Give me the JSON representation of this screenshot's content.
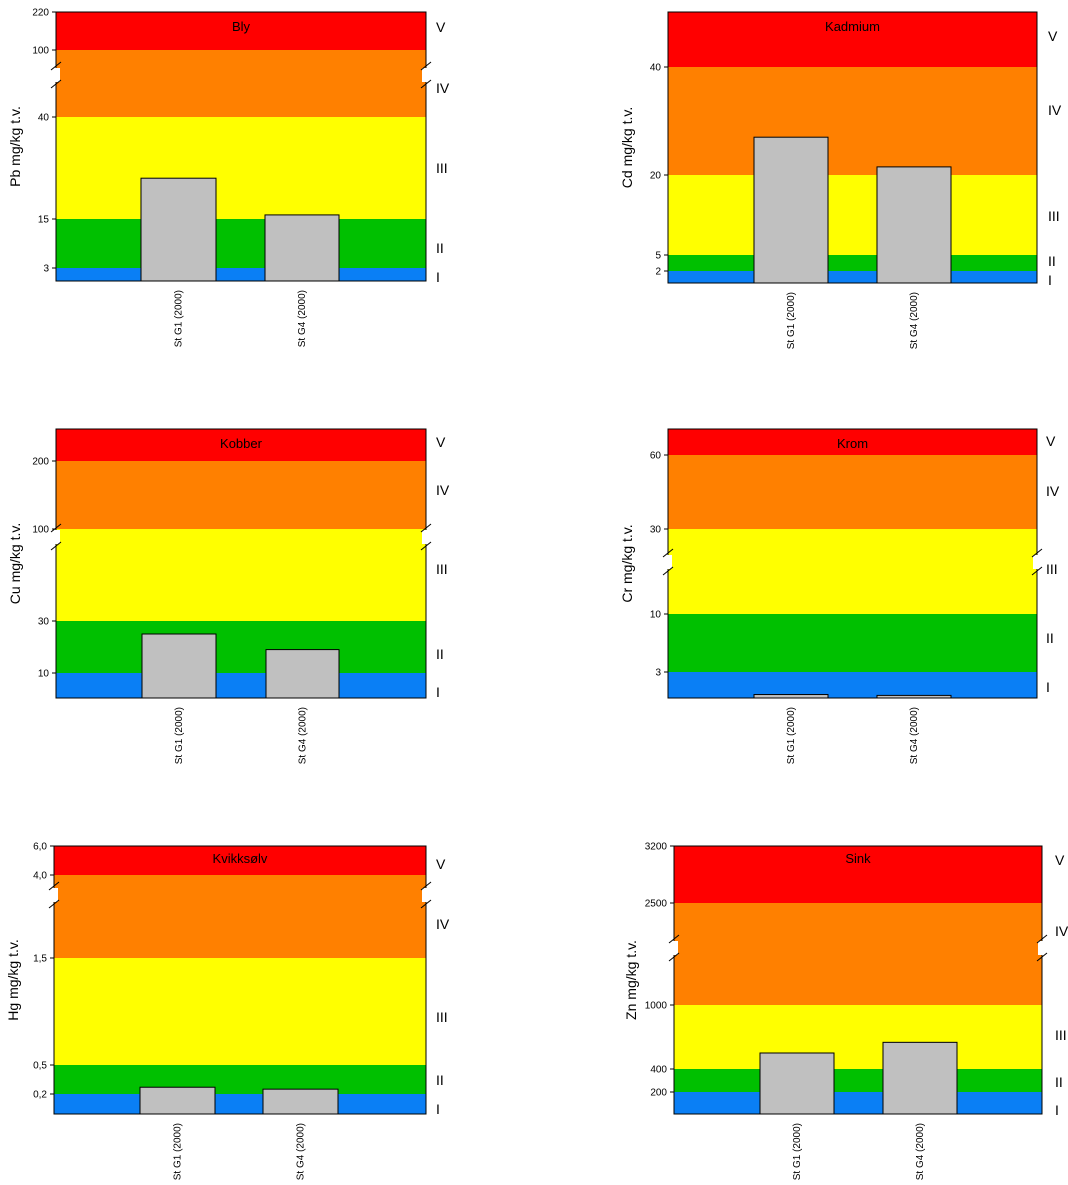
{
  "colors": {
    "class_I": "#0a7ff5",
    "class_II": "#00c000",
    "class_III": "#ffff00",
    "class_IV": "#ff8000",
    "class_V": "#ff0000",
    "bar_fill": "#c0c0c0",
    "bar_stroke": "#000000"
  },
  "class_labels": [
    "I",
    "II",
    "III",
    "IV",
    "V"
  ],
  "chart_data": [
    {
      "type": "bar",
      "title": "Bly",
      "ylabel": "Pb mg/kg t.v.",
      "categories": [
        "St G1 (2000)",
        "St G4 (2000)"
      ],
      "values": [
        25,
        16
      ],
      "ticks": [
        "3",
        "15",
        "40",
        "100",
        "220"
      ],
      "axis_breaks": true
    },
    {
      "type": "bar",
      "title": "Kadmium",
      "ylabel": "Cd mg/kg t.v.",
      "categories": [
        "St G1 (2000)",
        "St G4 (2000)"
      ],
      "values": [
        27,
        21.5
      ],
      "ticks": [
        "2",
        "5",
        "20",
        "40"
      ],
      "axis_breaks": false
    },
    {
      "type": "bar",
      "title": "Kobber",
      "ylabel": "Cu mg/kg t.v.",
      "categories": [
        "St G1 (2000)",
        "St G4 (2000)"
      ],
      "values": [
        25,
        19
      ],
      "ticks": [
        "10",
        "30",
        "100",
        "200"
      ],
      "axis_breaks": true
    },
    {
      "type": "bar",
      "title": "Krom",
      "ylabel": "Cr mg/kg t.v.",
      "categories": [
        "St G1 (2000)",
        "St G4 (2000)"
      ],
      "values": [
        0.4,
        0.3
      ],
      "ticks": [
        "3",
        "10",
        "30",
        "60"
      ],
      "axis_breaks": true
    },
    {
      "type": "bar",
      "title": "Kvikksølv",
      "ylabel": "Hg mg/kg t.v.",
      "categories": [
        "St G1 (2000)",
        "St G4 (2000)"
      ],
      "values": [
        0.27,
        0.25
      ],
      "ticks": [
        "0,2",
        "0,5",
        "1,5",
        "4,0",
        "6,0"
      ],
      "axis_breaks": true
    },
    {
      "type": "bar",
      "title": "Sink",
      "ylabel": "Zn mg/kg t.v.",
      "categories": [
        "St G1 (2000)",
        "St G4 (2000)"
      ],
      "values": [
        550,
        650
      ],
      "ticks": [
        "200",
        "400",
        "1000",
        "2500",
        "3200"
      ],
      "axis_breaks": true
    }
  ]
}
